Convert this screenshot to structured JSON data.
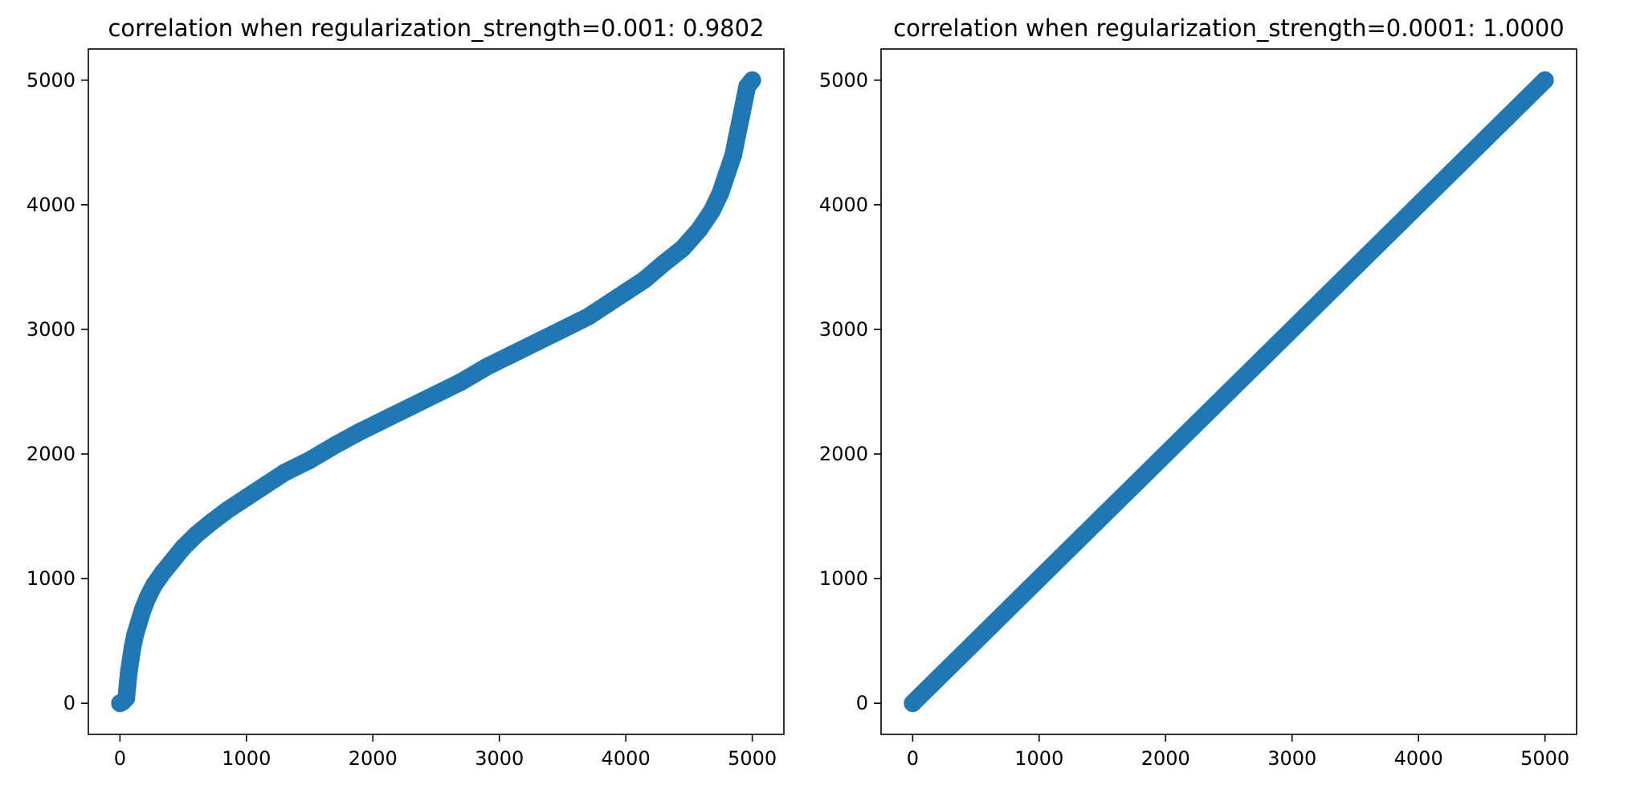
{
  "colors": {
    "marker": "#1f77b4",
    "axes": "#000000",
    "background": "#ffffff"
  },
  "chart_data": [
    {
      "type": "scatter",
      "title": "correlation when regularization_strength=0.001: 0.9802",
      "xlabel": "",
      "ylabel": "",
      "xlim": [
        -250,
        5250
      ],
      "ylim": [
        -250,
        5250
      ],
      "xticks": [
        0,
        1000,
        2000,
        3000,
        4000,
        5000
      ],
      "yticks": [
        0,
        1000,
        2000,
        3000,
        4000,
        5000
      ],
      "xtick_labels": [
        "0",
        "1000",
        "2000",
        "3000",
        "4000",
        "5000"
      ],
      "ytick_labels": [
        "0",
        "1000",
        "2000",
        "3000",
        "4000",
        "5000"
      ],
      "grid": false,
      "series": [
        {
          "color": "#1f77b4",
          "points": [
            [
              0,
              0
            ],
            [
              20,
              10
            ],
            [
              50,
              40
            ],
            [
              60,
              150
            ],
            [
              70,
              250
            ],
            [
              85,
              350
            ],
            [
              100,
              450
            ],
            [
              120,
              550
            ],
            [
              150,
              650
            ],
            [
              180,
              750
            ],
            [
              220,
              850
            ],
            [
              270,
              950
            ],
            [
              340,
              1050
            ],
            [
              420,
              1150
            ],
            [
              500,
              1250
            ],
            [
              600,
              1350
            ],
            [
              720,
              1450
            ],
            [
              850,
              1550
            ],
            [
              1000,
              1650
            ],
            [
              1150,
              1750
            ],
            [
              1300,
              1850
            ],
            [
              1500,
              1950
            ],
            [
              1700,
              2070
            ],
            [
              1900,
              2180
            ],
            [
              2100,
              2280
            ],
            [
              2300,
              2380
            ],
            [
              2500,
              2480
            ],
            [
              2700,
              2580
            ],
            [
              2900,
              2700
            ],
            [
              3100,
              2800
            ],
            [
              3300,
              2900
            ],
            [
              3500,
              3000
            ],
            [
              3700,
              3100
            ],
            [
              3850,
              3200
            ],
            [
              4000,
              3300
            ],
            [
              4150,
              3400
            ],
            [
              4300,
              3530
            ],
            [
              4450,
              3650
            ],
            [
              4580,
              3800
            ],
            [
              4680,
              3950
            ],
            [
              4750,
              4100
            ],
            [
              4800,
              4250
            ],
            [
              4850,
              4400
            ],
            [
              4880,
              4550
            ],
            [
              4910,
              4700
            ],
            [
              4940,
              4850
            ],
            [
              4960,
              4950
            ],
            [
              5000,
              5000
            ]
          ]
        }
      ]
    },
    {
      "type": "scatter",
      "title": "correlation when regularization_strength=0.0001: 1.0000",
      "xlabel": "",
      "ylabel": "",
      "xlim": [
        -250,
        5250
      ],
      "ylim": [
        -250,
        5250
      ],
      "xticks": [
        0,
        1000,
        2000,
        3000,
        4000,
        5000
      ],
      "yticks": [
        0,
        1000,
        2000,
        3000,
        4000,
        5000
      ],
      "xtick_labels": [
        "0",
        "1000",
        "2000",
        "3000",
        "4000",
        "5000"
      ],
      "ytick_labels": [
        "0",
        "1000",
        "2000",
        "3000",
        "4000",
        "5000"
      ],
      "grid": false,
      "series": [
        {
          "color": "#1f77b4",
          "points": [
            [
              0,
              0
            ],
            [
              5000,
              5000
            ]
          ]
        }
      ]
    }
  ]
}
